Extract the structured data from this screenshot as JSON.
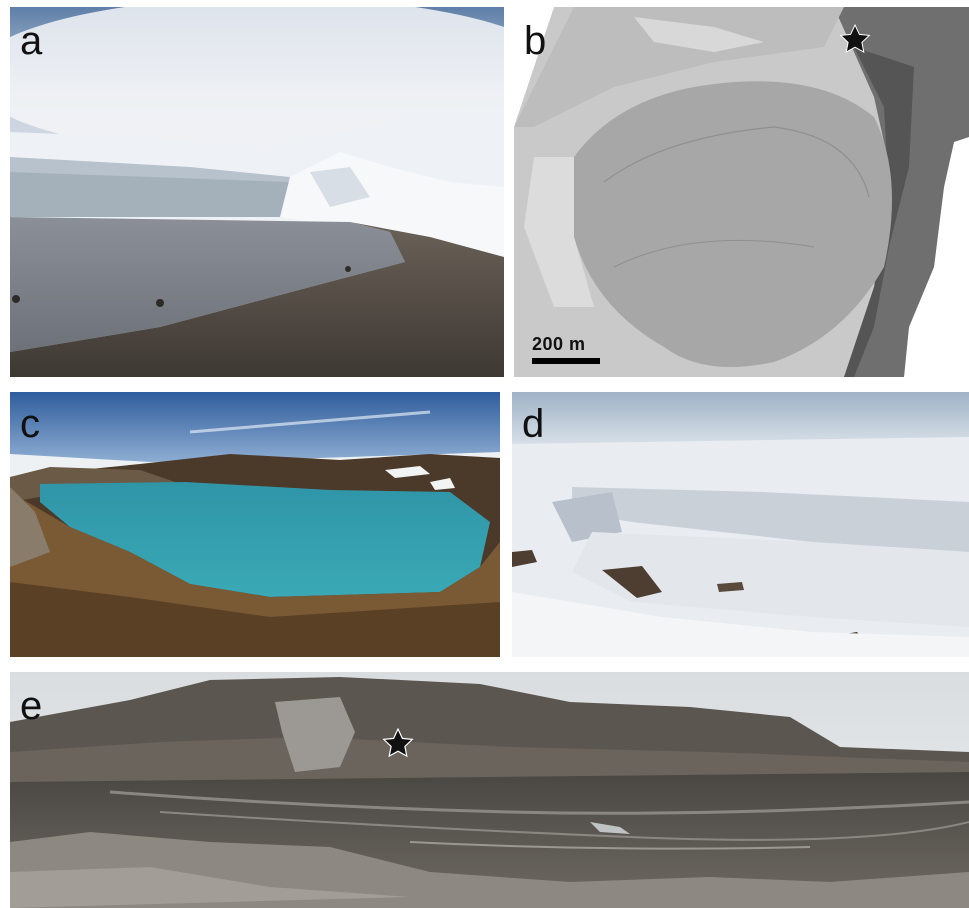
{
  "panels": [
    {
      "id": "a",
      "label": "a"
    },
    {
      "id": "b",
      "label": "b"
    },
    {
      "id": "c",
      "label": "c"
    },
    {
      "id": "d",
      "label": "d"
    },
    {
      "id": "e",
      "label": "e"
    }
  ],
  "scale_bar": {
    "text": "200 m"
  },
  "markers": [
    {
      "panel": "b",
      "shape": "star-icon"
    },
    {
      "panel": "e",
      "shape": "star-icon"
    }
  ]
}
